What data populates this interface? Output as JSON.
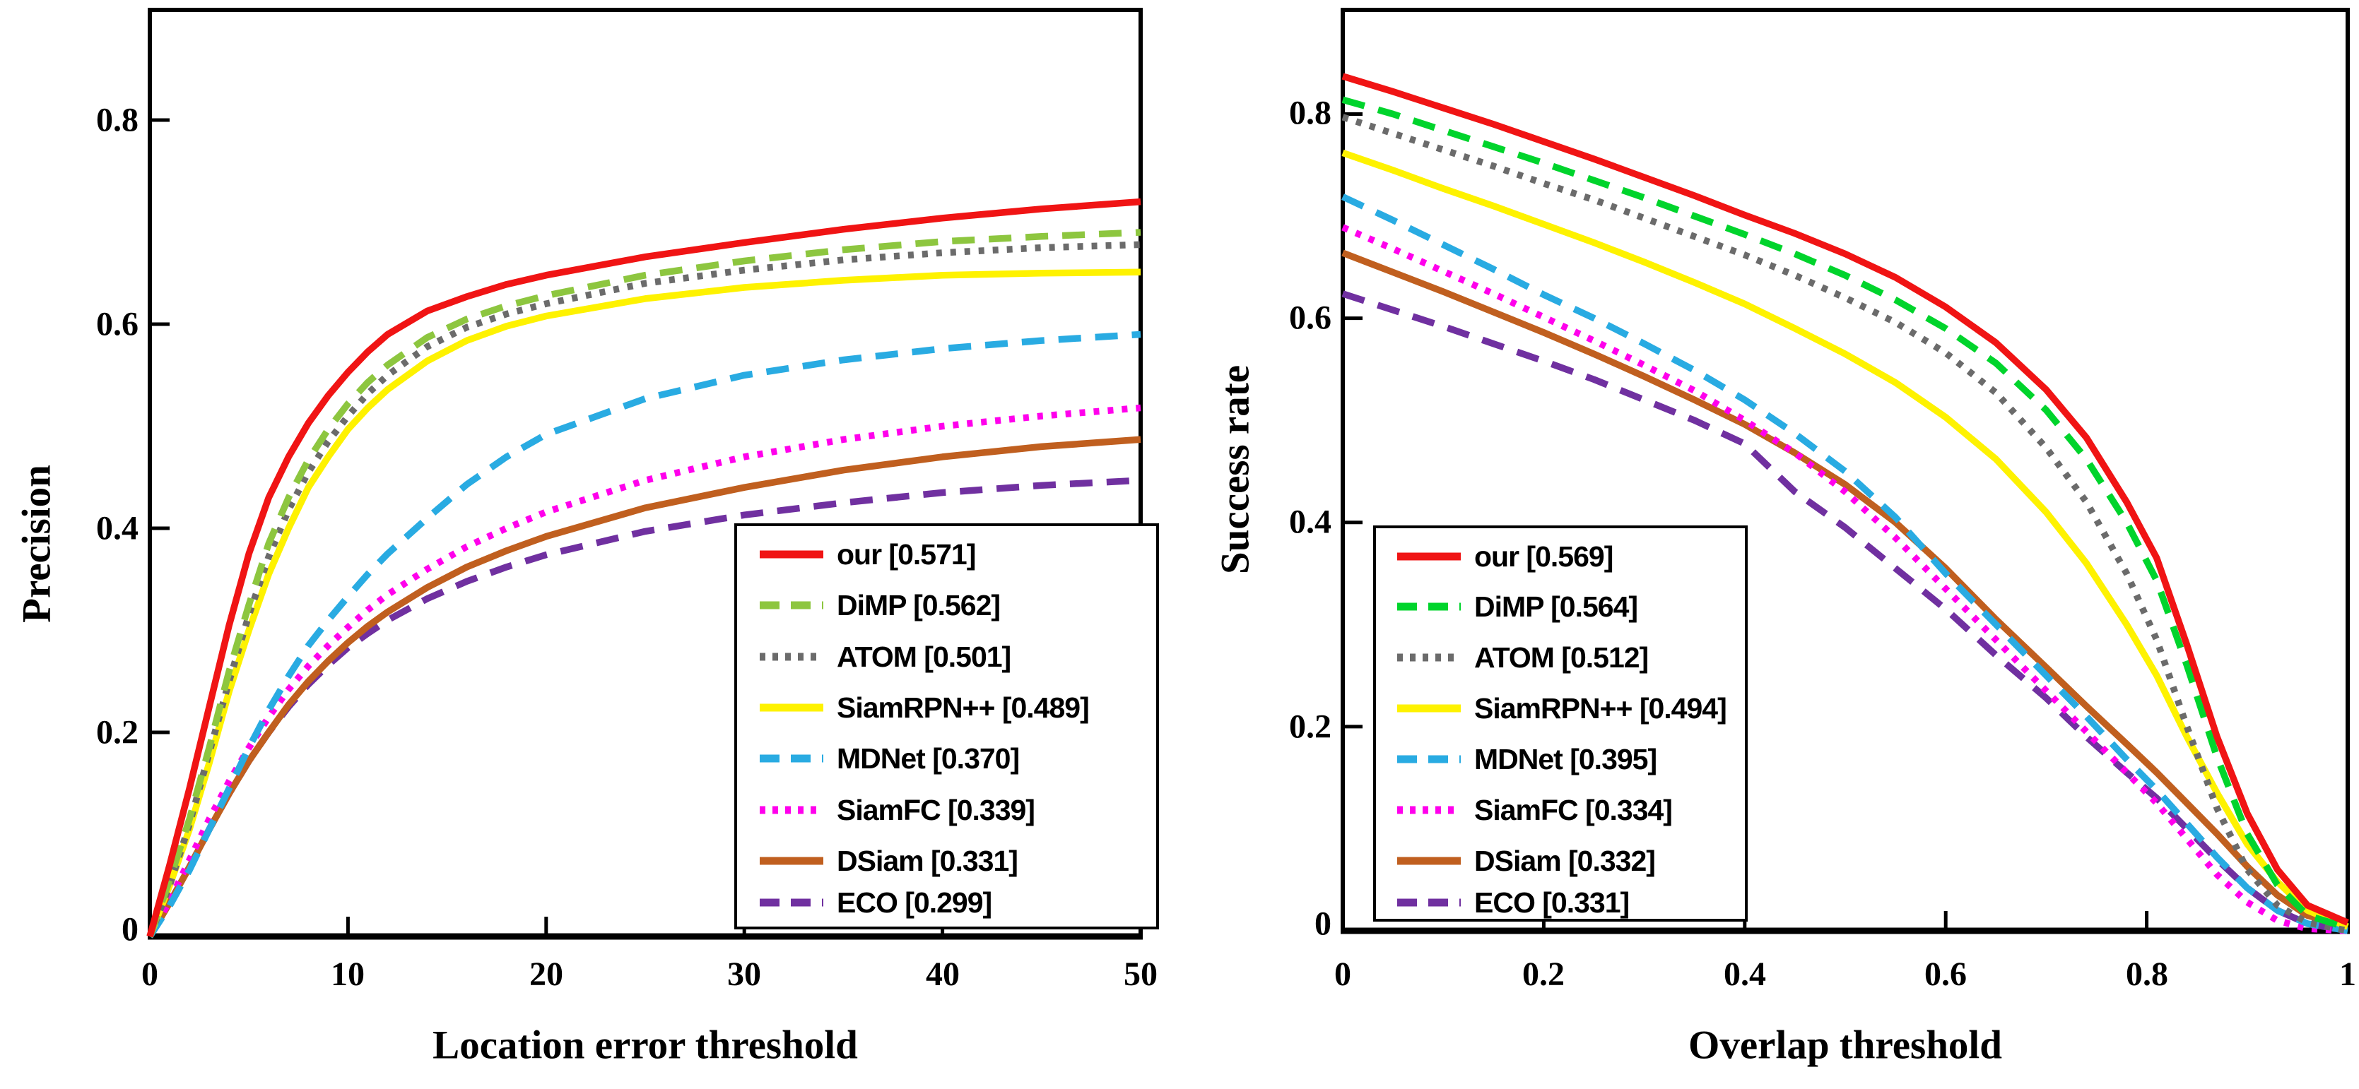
{
  "figure": {
    "background": "#ffffff",
    "description": "Precision and success plots comparing 8 visual trackers"
  },
  "chart_data": [
    {
      "type": "line",
      "title": "",
      "xlabel": "Location error threshold",
      "ylabel": "Precision",
      "xlim": [
        0,
        50
      ],
      "ylim": [
        0,
        0.9
      ],
      "grid": false,
      "legend_position": "lower right inside",
      "x_tick_labels": [
        "0",
        "10",
        "20",
        "30",
        "40",
        "50"
      ],
      "y_tick_labels": [
        "0",
        "0.2",
        "0.4",
        "0.6",
        "0.8"
      ],
      "series": [
        {
          "name": "our",
          "score": 0.571,
          "legend_label": "our [0.571]",
          "color": "#f01414",
          "style": "solid",
          "x": [
            0,
            1,
            2,
            3,
            4,
            5,
            6,
            7,
            8,
            9,
            10,
            11,
            12,
            14,
            16,
            18,
            20,
            25,
            30,
            35,
            40,
            45,
            50
          ],
          "y": [
            0,
            0.07,
            0.145,
            0.225,
            0.305,
            0.375,
            0.43,
            0.47,
            0.503,
            0.53,
            0.553,
            0.573,
            0.59,
            0.613,
            0.627,
            0.639,
            0.648,
            0.666,
            0.68,
            0.693,
            0.704,
            0.713,
            0.72
          ]
        },
        {
          "name": "DiMP",
          "score": 0.562,
          "legend_label": "DiMP [0.562]",
          "color": "#8dc63f",
          "style": "dashed",
          "x": [
            0,
            1,
            2,
            3,
            4,
            5,
            6,
            7,
            8,
            9,
            10,
            11,
            12,
            14,
            16,
            18,
            20,
            25,
            30,
            35,
            40,
            45,
            50
          ],
          "y": [
            0,
            0.055,
            0.115,
            0.185,
            0.26,
            0.325,
            0.385,
            0.43,
            0.467,
            0.497,
            0.522,
            0.543,
            0.56,
            0.587,
            0.605,
            0.618,
            0.628,
            0.648,
            0.662,
            0.673,
            0.681,
            0.686,
            0.69
          ]
        },
        {
          "name": "ATOM",
          "score": 0.501,
          "legend_label": "ATOM [0.501]",
          "color": "#6b6b6b",
          "style": "dotted",
          "x": [
            0,
            1,
            2,
            3,
            4,
            5,
            6,
            7,
            8,
            9,
            10,
            11,
            12,
            14,
            16,
            18,
            20,
            25,
            30,
            35,
            40,
            45,
            50
          ],
          "y": [
            0,
            0.05,
            0.11,
            0.18,
            0.25,
            0.315,
            0.372,
            0.418,
            0.455,
            0.485,
            0.51,
            0.532,
            0.55,
            0.578,
            0.597,
            0.61,
            0.62,
            0.64,
            0.653,
            0.663,
            0.67,
            0.675,
            0.678
          ]
        },
        {
          "name": "SiamRPN++",
          "score": 0.489,
          "legend_label": "SiamRPN++ [0.489]",
          "color": "#fef200",
          "style": "solid",
          "x": [
            0,
            1,
            2,
            3,
            4,
            5,
            6,
            7,
            8,
            9,
            10,
            11,
            12,
            14,
            16,
            18,
            20,
            25,
            30,
            35,
            40,
            45,
            50
          ],
          "y": [
            0,
            0.05,
            0.105,
            0.17,
            0.24,
            0.3,
            0.355,
            0.4,
            0.44,
            0.47,
            0.497,
            0.518,
            0.536,
            0.564,
            0.584,
            0.598,
            0.608,
            0.625,
            0.636,
            0.643,
            0.648,
            0.65,
            0.651
          ]
        },
        {
          "name": "MDNet",
          "score": 0.37,
          "legend_label": "MDNet [0.370]",
          "color": "#29abe2",
          "style": "dashed",
          "x": [
            0,
            1,
            2,
            3,
            4,
            5,
            6,
            7,
            8,
            9,
            10,
            11,
            12,
            14,
            16,
            18,
            20,
            25,
            30,
            35,
            40,
            45,
            50
          ],
          "y": [
            0,
            0.03,
            0.065,
            0.105,
            0.145,
            0.185,
            0.222,
            0.255,
            0.285,
            0.31,
            0.333,
            0.355,
            0.375,
            0.41,
            0.443,
            0.47,
            0.492,
            0.527,
            0.55,
            0.565,
            0.576,
            0.584,
            0.59
          ]
        },
        {
          "name": "SiamFC",
          "score": 0.339,
          "legend_label": "SiamFC [0.339]",
          "color": "#ff00ec",
          "style": "dotted",
          "x": [
            0,
            1,
            2,
            3,
            4,
            5,
            6,
            7,
            8,
            9,
            10,
            11,
            12,
            14,
            16,
            18,
            20,
            25,
            30,
            35,
            40,
            45,
            50
          ],
          "y": [
            0,
            0.035,
            0.075,
            0.115,
            0.152,
            0.185,
            0.215,
            0.242,
            0.265,
            0.285,
            0.303,
            0.32,
            0.335,
            0.36,
            0.382,
            0.4,
            0.416,
            0.447,
            0.47,
            0.487,
            0.5,
            0.51,
            0.518
          ]
        },
        {
          "name": "DSiam",
          "score": 0.331,
          "legend_label": "DSiam [0.331]",
          "color": "#c05f1f",
          "style": "solid",
          "x": [
            0,
            1,
            2,
            3,
            4,
            5,
            6,
            7,
            8,
            9,
            10,
            11,
            12,
            14,
            16,
            18,
            20,
            25,
            30,
            35,
            40,
            45,
            50
          ],
          "y": [
            0,
            0.033,
            0.068,
            0.105,
            0.14,
            0.172,
            0.2,
            0.227,
            0.25,
            0.27,
            0.288,
            0.304,
            0.318,
            0.342,
            0.362,
            0.378,
            0.392,
            0.42,
            0.44,
            0.457,
            0.47,
            0.48,
            0.487
          ]
        },
        {
          "name": "ECO",
          "score": 0.299,
          "legend_label": "ECO [0.299]",
          "color": "#7030a0",
          "style": "dashed",
          "x": [
            0,
            1,
            2,
            3,
            4,
            5,
            6,
            7,
            8,
            9,
            10,
            11,
            12,
            14,
            16,
            18,
            20,
            25,
            30,
            35,
            40,
            45,
            50
          ],
          "y": [
            0,
            0.033,
            0.068,
            0.105,
            0.14,
            0.172,
            0.2,
            0.225,
            0.247,
            0.266,
            0.283,
            0.297,
            0.31,
            0.331,
            0.348,
            0.362,
            0.374,
            0.397,
            0.413,
            0.425,
            0.435,
            0.442,
            0.447
          ]
        }
      ]
    },
    {
      "type": "line",
      "title": "",
      "xlabel": "Overlap threshold",
      "ylabel": "Success rate",
      "xlim": [
        0,
        1
      ],
      "ylim": [
        0,
        0.9
      ],
      "grid": false,
      "legend_position": "lower left inside",
      "x_tick_labels": [
        "0",
        "0.2",
        "0.4",
        "0.6",
        "0.8",
        "1"
      ],
      "y_tick_labels": [
        "0",
        "0.2",
        "0.4",
        "0.6",
        "0.8"
      ],
      "series": [
        {
          "name": "our",
          "score": 0.569,
          "legend_label": "our [0.569]",
          "color": "#f01414",
          "style": "solid",
          "x": [
            0,
            0.05,
            0.1,
            0.15,
            0.2,
            0.25,
            0.3,
            0.35,
            0.4,
            0.45,
            0.5,
            0.55,
            0.6,
            0.65,
            0.7,
            0.74,
            0.78,
            0.81,
            0.84,
            0.87,
            0.9,
            0.93,
            0.96,
            1.0
          ],
          "y": [
            0.837,
            0.822,
            0.806,
            0.79,
            0.773,
            0.756,
            0.738,
            0.72,
            0.701,
            0.683,
            0.663,
            0.64,
            0.611,
            0.576,
            0.53,
            0.483,
            0.42,
            0.365,
            0.28,
            0.19,
            0.115,
            0.06,
            0.025,
            0.008
          ]
        },
        {
          "name": "DiMP",
          "score": 0.564,
          "legend_label": "DiMP [0.564]",
          "color": "#00d42c",
          "style": "dashed",
          "x": [
            0,
            0.05,
            0.1,
            0.15,
            0.2,
            0.25,
            0.3,
            0.35,
            0.4,
            0.45,
            0.5,
            0.55,
            0.6,
            0.65,
            0.7,
            0.74,
            0.78,
            0.81,
            0.84,
            0.87,
            0.9,
            0.93,
            0.96,
            1.0
          ],
          "y": [
            0.814,
            0.8,
            0.784,
            0.768,
            0.752,
            0.735,
            0.718,
            0.7,
            0.682,
            0.663,
            0.642,
            0.618,
            0.59,
            0.556,
            0.51,
            0.462,
            0.4,
            0.343,
            0.26,
            0.17,
            0.095,
            0.045,
            0.015,
            0.003
          ]
        },
        {
          "name": "ATOM",
          "score": 0.512,
          "legend_label": "ATOM [0.512]",
          "color": "#6b6b6b",
          "style": "dotted",
          "x": [
            0,
            0.05,
            0.1,
            0.15,
            0.2,
            0.25,
            0.3,
            0.35,
            0.4,
            0.45,
            0.5,
            0.55,
            0.6,
            0.65,
            0.7,
            0.74,
            0.78,
            0.81,
            0.84,
            0.87,
            0.9,
            0.93,
            0.96,
            1.0
          ],
          "y": [
            0.797,
            0.781,
            0.765,
            0.749,
            0.732,
            0.716,
            0.698,
            0.68,
            0.662,
            0.642,
            0.62,
            0.596,
            0.566,
            0.527,
            0.473,
            0.42,
            0.35,
            0.285,
            0.2,
            0.12,
            0.06,
            0.025,
            0.008,
            0.0
          ]
        },
        {
          "name": "SiamRPN++",
          "score": 0.494,
          "legend_label": "SiamRPN++ [0.494]",
          "color": "#fef200",
          "style": "solid",
          "x": [
            0,
            0.05,
            0.1,
            0.15,
            0.2,
            0.25,
            0.3,
            0.35,
            0.4,
            0.45,
            0.5,
            0.55,
            0.6,
            0.65,
            0.7,
            0.74,
            0.78,
            0.81,
            0.84,
            0.87,
            0.9,
            0.93,
            0.96,
            1.0
          ],
          "y": [
            0.762,
            0.745,
            0.727,
            0.71,
            0.692,
            0.674,
            0.655,
            0.635,
            0.614,
            0.59,
            0.565,
            0.537,
            0.503,
            0.462,
            0.41,
            0.36,
            0.3,
            0.25,
            0.19,
            0.135,
            0.085,
            0.048,
            0.02,
            0.004
          ]
        },
        {
          "name": "MDNet",
          "score": 0.395,
          "legend_label": "MDNet [0.395]",
          "color": "#29abe2",
          "style": "dashed",
          "x": [
            0,
            0.05,
            0.1,
            0.15,
            0.2,
            0.25,
            0.3,
            0.35,
            0.4,
            0.45,
            0.5,
            0.55,
            0.6,
            0.65,
            0.7,
            0.74,
            0.78,
            0.81,
            0.84,
            0.87,
            0.9,
            0.93,
            0.96,
            1.0
          ],
          "y": [
            0.719,
            0.696,
            0.672,
            0.648,
            0.623,
            0.6,
            0.575,
            0.549,
            0.52,
            0.487,
            0.45,
            0.405,
            0.35,
            0.3,
            0.25,
            0.21,
            0.168,
            0.138,
            0.105,
            0.072,
            0.042,
            0.02,
            0.007,
            0.0
          ]
        },
        {
          "name": "SiamFC",
          "score": 0.334,
          "legend_label": "SiamFC [0.334]",
          "color": "#ff00ec",
          "style": "dotted",
          "x": [
            0,
            0.05,
            0.1,
            0.15,
            0.2,
            0.25,
            0.3,
            0.35,
            0.4,
            0.45,
            0.5,
            0.55,
            0.6,
            0.65,
            0.7,
            0.74,
            0.78,
            0.81,
            0.84,
            0.87,
            0.9,
            0.93,
            0.96,
            1.0
          ],
          "y": [
            0.689,
            0.668,
            0.646,
            0.624,
            0.601,
            0.578,
            0.554,
            0.529,
            0.5,
            0.468,
            0.43,
            0.385,
            0.335,
            0.285,
            0.235,
            0.195,
            0.155,
            0.125,
            0.09,
            0.055,
            0.028,
            0.01,
            0.002,
            0.0
          ]
        },
        {
          "name": "DSiam",
          "score": 0.332,
          "legend_label": "DSiam [0.332]",
          "color": "#c05f1f",
          "style": "solid",
          "x": [
            0,
            0.05,
            0.1,
            0.15,
            0.2,
            0.25,
            0.3,
            0.35,
            0.4,
            0.45,
            0.5,
            0.55,
            0.6,
            0.65,
            0.7,
            0.74,
            0.78,
            0.81,
            0.84,
            0.87,
            0.9,
            0.93,
            0.96,
            1.0
          ],
          "y": [
            0.664,
            0.645,
            0.626,
            0.606,
            0.586,
            0.565,
            0.543,
            0.52,
            0.496,
            0.468,
            0.437,
            0.4,
            0.355,
            0.305,
            0.258,
            0.22,
            0.183,
            0.155,
            0.125,
            0.095,
            0.063,
            0.035,
            0.015,
            0.004
          ]
        },
        {
          "name": "ECO",
          "score": 0.331,
          "legend_label": "ECO [0.331]",
          "color": "#7030a0",
          "style": "dashed",
          "x": [
            0,
            0.05,
            0.1,
            0.15,
            0.2,
            0.25,
            0.3,
            0.35,
            0.4,
            0.45,
            0.5,
            0.55,
            0.6,
            0.65,
            0.7,
            0.74,
            0.78,
            0.81,
            0.84,
            0.87,
            0.9,
            0.93,
            0.96,
            1.0
          ],
          "y": [
            0.624,
            0.608,
            0.592,
            0.575,
            0.558,
            0.54,
            0.52,
            0.5,
            0.477,
            0.43,
            0.395,
            0.355,
            0.315,
            0.27,
            0.228,
            0.19,
            0.155,
            0.13,
            0.1,
            0.07,
            0.042,
            0.02,
            0.007,
            0.0
          ]
        }
      ]
    }
  ]
}
